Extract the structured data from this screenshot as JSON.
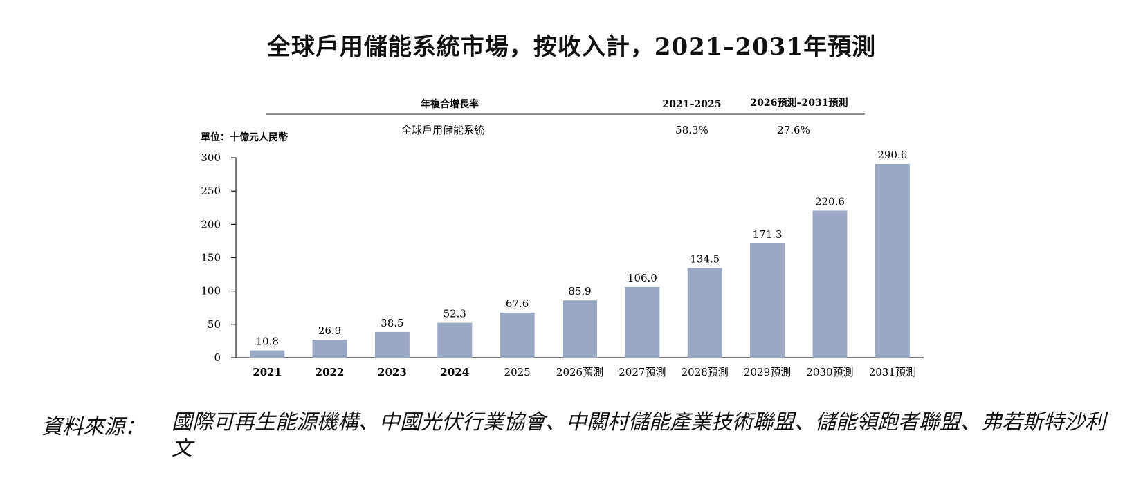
{
  "title": "全球戶用儲能系統市場，按收入計，2021–2031年預測",
  "cagr_table": {
    "header_label": "年複合增長率",
    "period_1": "2021–2025",
    "period_2": "2026預測–2031預測",
    "row_label": "全球戶用儲能系統",
    "rate_1": "58.3%",
    "rate_2": "27.6%"
  },
  "chart_data": {
    "type": "bar",
    "title": "全球戶用儲能系統市場，按收入計，2021–2031年預測",
    "ylabel": "單位：十億元人民幣",
    "xlabel": "",
    "ylim": [
      0,
      300
    ],
    "yticks": [
      0,
      50,
      100,
      150,
      200,
      250,
      300
    ],
    "categories": [
      "2021",
      "2022",
      "2023",
      "2024",
      "2025",
      "2026預測",
      "2027預測",
      "2028預測",
      "2029預測",
      "2030預測",
      "2031預測"
    ],
    "values": [
      10.8,
      26.9,
      38.5,
      52.3,
      67.6,
      85.9,
      106.0,
      134.5,
      171.3,
      220.6,
      290.6
    ],
    "value_labels": [
      "10.8",
      "26.9",
      "38.5",
      "52.3",
      "67.6",
      "85.9",
      "106.0",
      "134.5",
      "171.3",
      "220.6",
      "290.6"
    ],
    "bar_color": "#9ba8c4",
    "grid": false,
    "legend": "none"
  },
  "source": {
    "label": "資料來源：",
    "text": "國際可再生能源機構、中國光伏行業協會、中關村儲能產業技術聯盟、儲能領跑者聯盟、弗若斯特沙利文"
  }
}
